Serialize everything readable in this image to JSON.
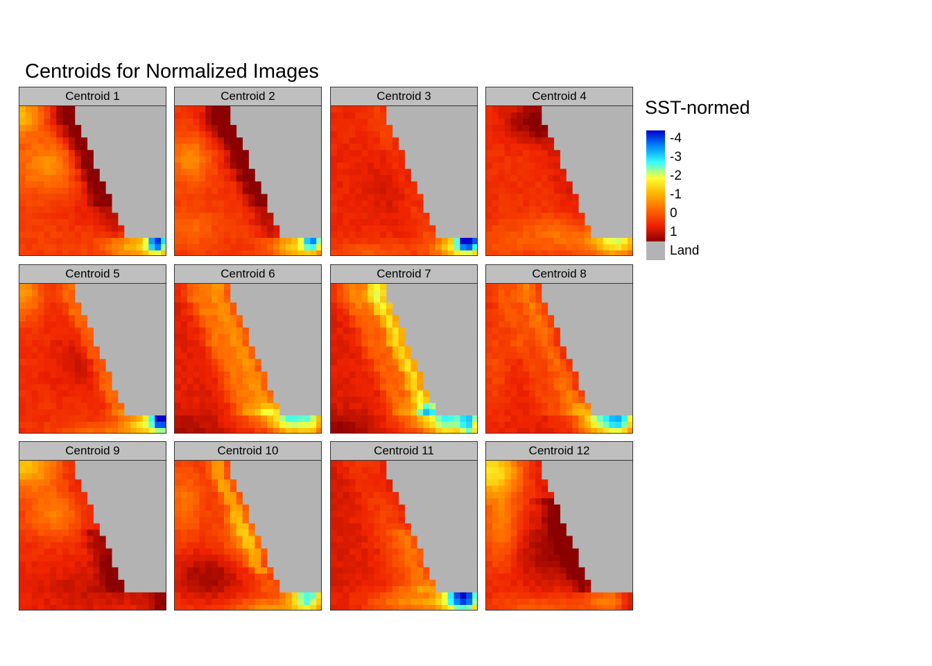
{
  "chart_data": {
    "type": "heatmap",
    "title": "Centroids for Normalized Images",
    "facet_layout": {
      "rows": 3,
      "cols": 4
    },
    "grid": {
      "cols": 24,
      "rows": 24
    },
    "facets": [
      {
        "label": "Centroid 1"
      },
      {
        "label": "Centroid 2"
      },
      {
        "label": "Centroid 3"
      },
      {
        "label": "Centroid 4"
      },
      {
        "label": "Centroid 5"
      },
      {
        "label": "Centroid 6"
      },
      {
        "label": "Centroid 7"
      },
      {
        "label": "Centroid 8"
      },
      {
        "label": "Centroid 9"
      },
      {
        "label": "Centroid 10"
      },
      {
        "label": "Centroid 11"
      },
      {
        "label": "Centroid 12"
      }
    ],
    "legend": {
      "title": "SST-normed",
      "ticks": [
        "-4",
        "-3",
        "-2",
        "-1",
        "0",
        "1"
      ],
      "tick_values": [
        -4,
        -3,
        -2,
        -1,
        0,
        1
      ],
      "range": [
        -4.4,
        1.5
      ],
      "land_label": "Land",
      "land_color": "#b3b3b3",
      "colorscale": [
        "#8b0000",
        "#ee2200",
        "#ff6600",
        "#ffb300",
        "#ffff33",
        "#33ffff",
        "#0088ff",
        "#0000cc"
      ]
    }
  }
}
